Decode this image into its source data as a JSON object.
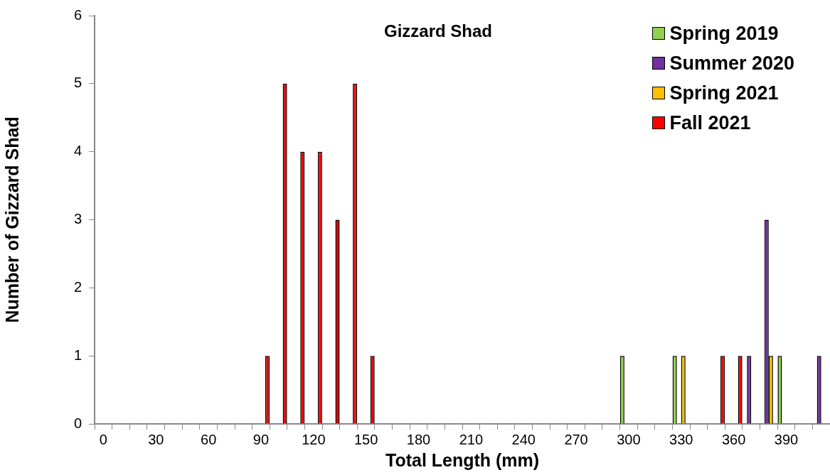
{
  "chart_data": {
    "type": "bar",
    "title": "Gizzard Shad",
    "xlabel": "Total Length (mm)",
    "ylabel": "Number of Gizzard Shad",
    "categories": [
      "0",
      null,
      null,
      "30",
      null,
      null,
      "60",
      null,
      null,
      "90",
      null,
      null,
      "120",
      null,
      null,
      "150",
      null,
      null,
      "180",
      null,
      null,
      "210",
      null,
      null,
      "240",
      null,
      null,
      "270",
      null,
      null,
      "300",
      null,
      null,
      "330",
      null,
      null,
      "360",
      null,
      null,
      "390",
      null,
      null
    ],
    "series": [
      {
        "name": "Spring 2019",
        "color": "#92d050",
        "values": [
          0,
          0,
          0,
          0,
          0,
          0,
          0,
          0,
          0,
          0,
          0,
          0,
          0,
          0,
          0,
          0,
          0,
          0,
          0,
          0,
          0,
          0,
          0,
          0,
          0,
          0,
          0,
          0,
          0,
          0,
          1,
          0,
          0,
          1,
          0,
          0,
          0,
          0,
          0,
          1,
          0,
          0
        ]
      },
      {
        "name": "Summer 2020",
        "color": "#7030a0",
        "values": [
          0,
          0,
          0,
          0,
          0,
          0,
          0,
          0,
          0,
          0,
          0,
          0,
          0,
          0,
          0,
          0,
          0,
          0,
          0,
          0,
          0,
          0,
          0,
          0,
          0,
          0,
          0,
          0,
          0,
          0,
          0,
          0,
          0,
          0,
          0,
          0,
          0,
          1,
          3,
          0,
          0,
          1
        ]
      },
      {
        "name": "Spring 2021",
        "color": "#ffc000",
        "values": [
          0,
          0,
          0,
          0,
          0,
          0,
          0,
          0,
          0,
          0,
          0,
          0,
          0,
          0,
          0,
          0,
          0,
          0,
          0,
          0,
          0,
          0,
          0,
          0,
          0,
          0,
          0,
          0,
          0,
          0,
          0,
          0,
          0,
          1,
          0,
          0,
          0,
          0,
          1,
          0,
          0,
          0
        ]
      },
      {
        "name": "Fall 2021",
        "color": "#ff0000",
        "values": [
          0,
          0,
          0,
          0,
          0,
          0,
          0,
          0,
          0,
          1,
          5,
          4,
          4,
          3,
          5,
          1,
          0,
          0,
          0,
          0,
          0,
          0,
          0,
          0,
          0,
          0,
          0,
          0,
          0,
          0,
          0,
          0,
          0,
          0,
          0,
          1,
          1,
          0,
          0,
          0,
          0,
          0
        ]
      }
    ],
    "ylim": [
      0,
      6
    ],
    "yticks": [
      0,
      1,
      2,
      3,
      4,
      5,
      6
    ],
    "grid": false,
    "legend": "top right"
  }
}
